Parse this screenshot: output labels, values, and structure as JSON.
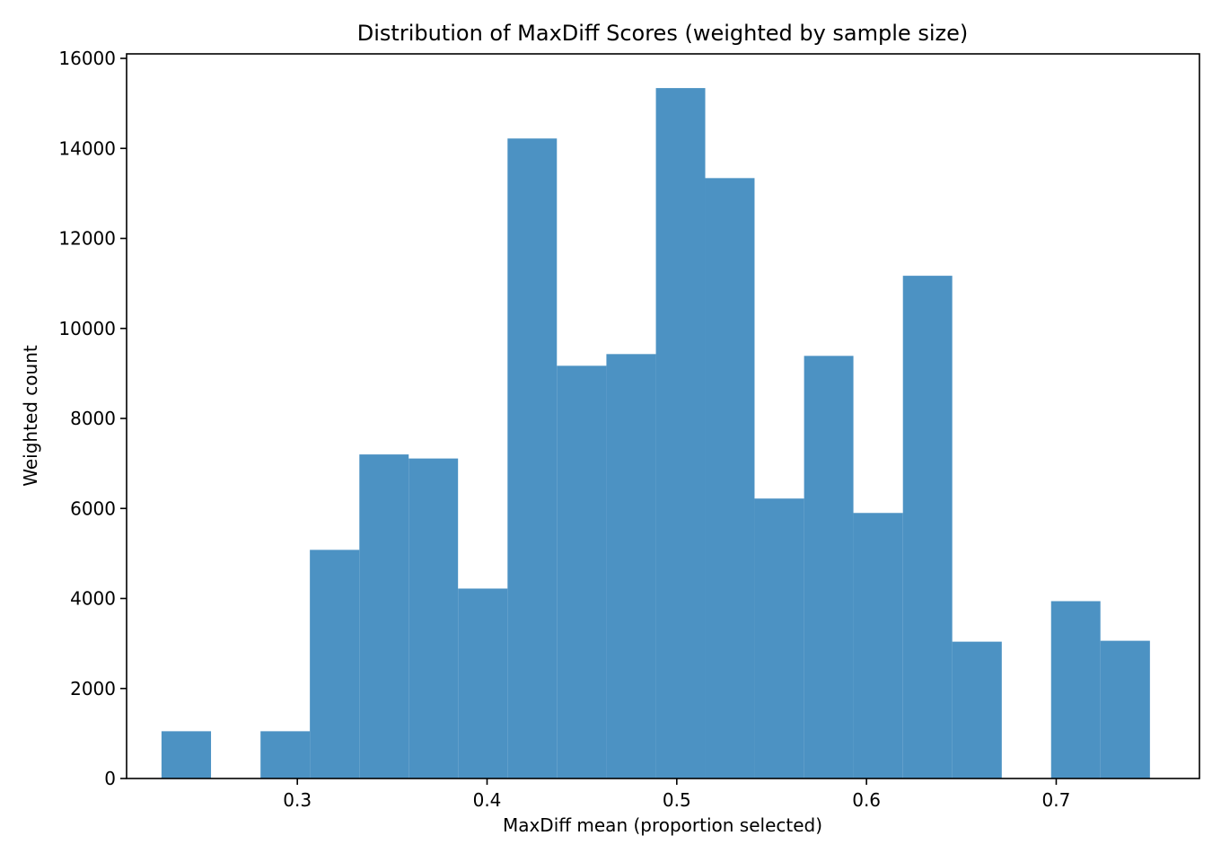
{
  "chart_data": {
    "type": "bar",
    "title": "Distribution of MaxDiff Scores (weighted by sample size)",
    "xlabel": "MaxDiff mean (proportion selected)",
    "ylabel": "Weighted count",
    "xlim": [
      0.21,
      0.7755
    ],
    "ylim": [
      0,
      16100
    ],
    "xticks": [
      0.3,
      0.4,
      0.5,
      0.6,
      0.7
    ],
    "xtick_labels": [
      "0.3",
      "0.4",
      "0.5",
      "0.6",
      "0.7"
    ],
    "yticks": [
      0,
      2000,
      4000,
      6000,
      8000,
      10000,
      12000,
      14000,
      16000
    ],
    "ytick_labels": [
      "0",
      "2000",
      "4000",
      "6000",
      "8000",
      "10000",
      "12000",
      "14000",
      "16000"
    ],
    "bar_color": "#4c92c3",
    "grid": false,
    "bins": [
      {
        "x0": 0.2284,
        "x1": 0.2545,
        "value": 1050
      },
      {
        "x0": 0.2545,
        "x1": 0.2806,
        "value": 0
      },
      {
        "x0": 0.2806,
        "x1": 0.3066,
        "value": 1050
      },
      {
        "x0": 0.3066,
        "x1": 0.3327,
        "value": 5080
      },
      {
        "x0": 0.3327,
        "x1": 0.3587,
        "value": 7200
      },
      {
        "x0": 0.3587,
        "x1": 0.3847,
        "value": 7110
      },
      {
        "x0": 0.3847,
        "x1": 0.4108,
        "value": 4220
      },
      {
        "x0": 0.4108,
        "x1": 0.4368,
        "value": 14220
      },
      {
        "x0": 0.4368,
        "x1": 0.4629,
        "value": 9170
      },
      {
        "x0": 0.4629,
        "x1": 0.489,
        "value": 9430
      },
      {
        "x0": 0.489,
        "x1": 0.515,
        "value": 15340
      },
      {
        "x0": 0.515,
        "x1": 0.541,
        "value": 13340
      },
      {
        "x0": 0.541,
        "x1": 0.5671,
        "value": 6220
      },
      {
        "x0": 0.5671,
        "x1": 0.5931,
        "value": 9390
      },
      {
        "x0": 0.5931,
        "x1": 0.6192,
        "value": 5900
      },
      {
        "x0": 0.6192,
        "x1": 0.6452,
        "value": 11170
      },
      {
        "x0": 0.6452,
        "x1": 0.6713,
        "value": 3040
      },
      {
        "x0": 0.6713,
        "x1": 0.6973,
        "value": 0
      },
      {
        "x0": 0.6973,
        "x1": 0.7233,
        "value": 3940
      },
      {
        "x0": 0.7233,
        "x1": 0.7494,
        "value": 3060
      }
    ]
  }
}
